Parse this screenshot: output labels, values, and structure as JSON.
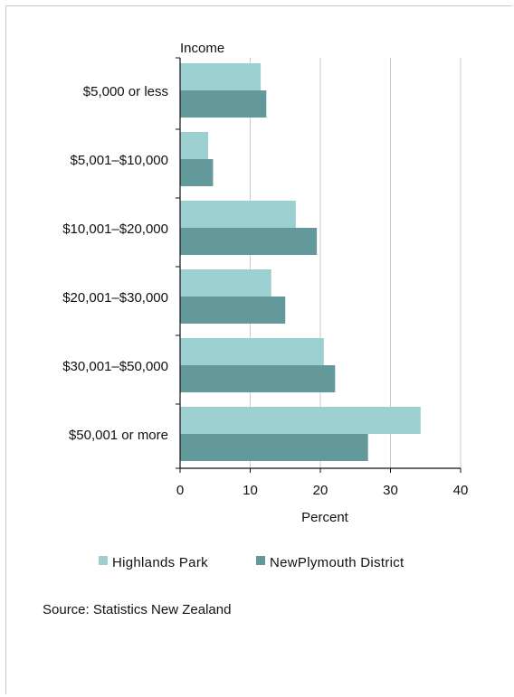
{
  "source_note": "Source: Statistics New Zealand",
  "colors": {
    "series_1": "#9ccfcf",
    "series_2": "#63999a",
    "grid": "#c8c8c8",
    "axis": "#111111"
  },
  "chart_data": {
    "type": "bar",
    "orientation": "horizontal",
    "title": "",
    "ylabel": "Income",
    "xlabel": "Percent",
    "categories": [
      "$5,000 or less",
      "$5,001–$10,000",
      "$10,001–$20,000",
      "$20,001–$30,000",
      "$30,001–$50,000",
      "$50,001 or more"
    ],
    "series": [
      {
        "name": "Highlands Park",
        "values": [
          11.5,
          4.0,
          16.5,
          13.0,
          20.5,
          34.3
        ]
      },
      {
        "name": "NewPlymouth District",
        "values": [
          12.3,
          4.7,
          19.5,
          15.0,
          22.1,
          26.8
        ]
      }
    ],
    "xlim": [
      0,
      40
    ],
    "xticks": [
      0,
      10,
      20,
      30,
      40
    ],
    "grid": true,
    "legend_position": "bottom"
  }
}
